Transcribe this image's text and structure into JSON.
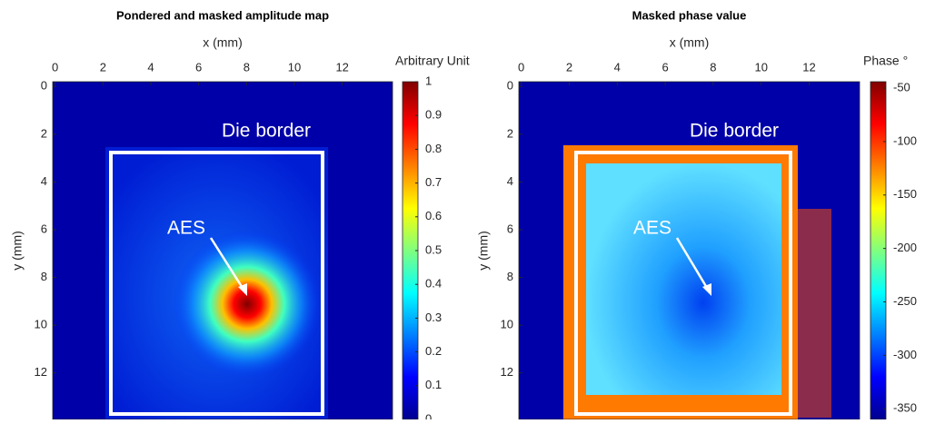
{
  "chart_data": [
    {
      "type": "heatmap",
      "title": "Pondered and masked amplitude map",
      "xlabel": "x (mm)",
      "ylabel": "y (mm)",
      "xlim": [
        -0.1,
        14.1
      ],
      "ylim": [
        -0.2,
        13.95
      ],
      "y_reversed": true,
      "x_axis_position": "top",
      "xticks": [
        0,
        2,
        4,
        6,
        8,
        10,
        12
      ],
      "yticks": [
        0,
        2,
        4,
        6,
        8,
        10,
        12
      ],
      "colormap": "jet",
      "colorbar": {
        "label": "Arbitrary Unit",
        "lim": [
          0,
          1
        ],
        "ticks": [
          0,
          0.1,
          0.2,
          0.3,
          0.4,
          0.5,
          0.6,
          0.7,
          0.8,
          0.9,
          1
        ]
      },
      "annotations": [
        "Die border",
        "AES"
      ]
    },
    {
      "type": "heatmap",
      "title": "Masked phase value",
      "xlabel": "x (mm)",
      "ylabel": "y (mm)",
      "xlim": [
        -0.1,
        14.1
      ],
      "ylim": [
        -0.2,
        13.95
      ],
      "y_reversed": true,
      "x_axis_position": "top",
      "xticks": [
        0,
        2,
        4,
        6,
        8,
        10,
        12
      ],
      "yticks": [
        0,
        2,
        4,
        6,
        8,
        10,
        12
      ],
      "colormap": "jet",
      "colorbar": {
        "label": "Phase °",
        "lim": [
          -360,
          -44
        ],
        "ticks": [
          -50,
          -100,
          -150,
          -200,
          -250,
          -300,
          -350
        ]
      },
      "annotations": [
        "Die border",
        "AES"
      ]
    }
  ]
}
